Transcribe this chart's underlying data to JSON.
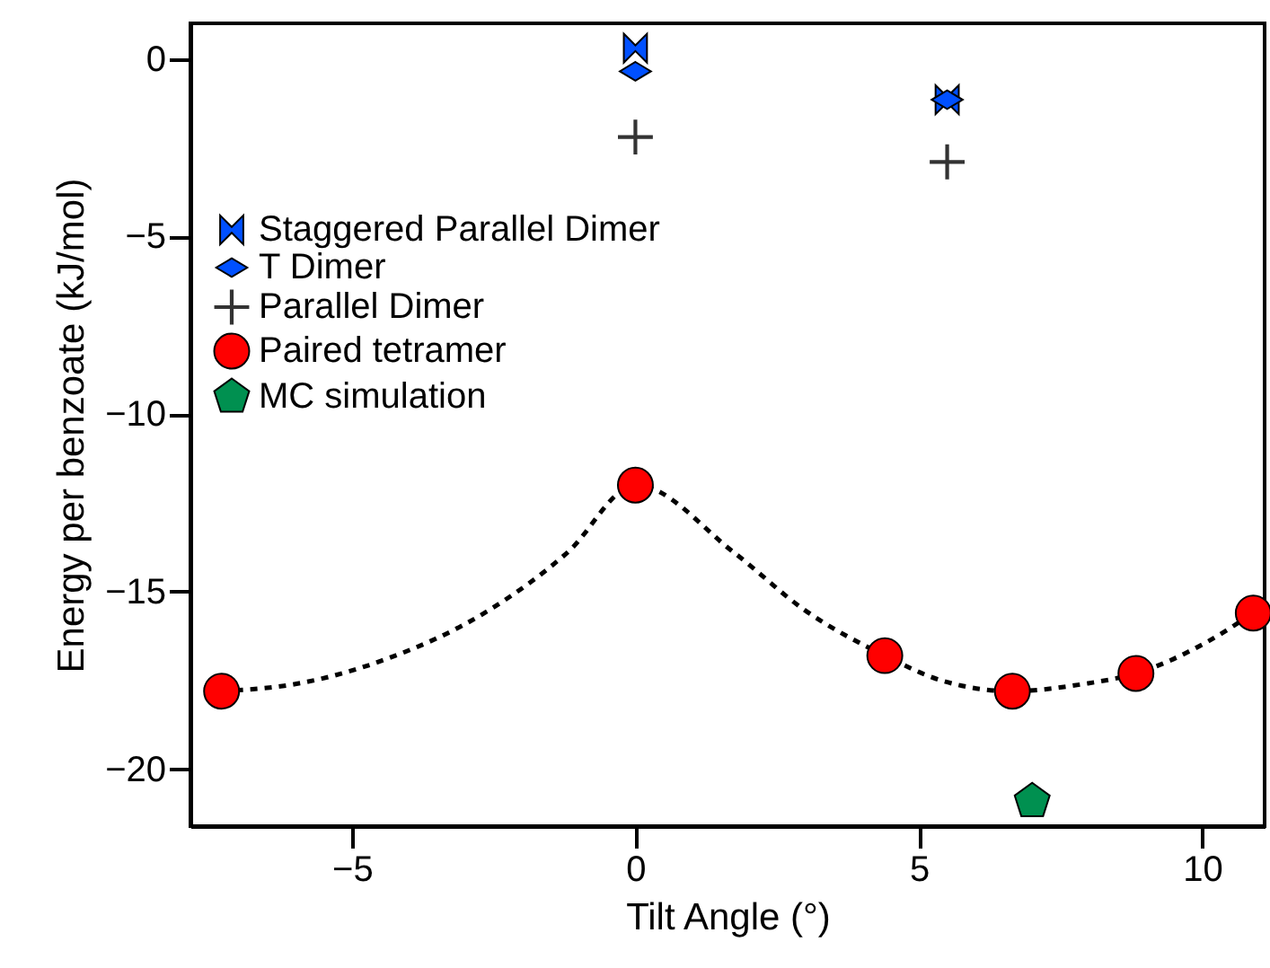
{
  "chart_data": {
    "type": "scatter",
    "xlabel": "Tilt Angle (°)",
    "ylabel": "Energy per benzoate (kJ/mol)",
    "xlim": [
      -7.85,
      11.1
    ],
    "ylim": [
      -21.6,
      1
    ],
    "xticks": [
      -5,
      0,
      5,
      10
    ],
    "yticks": [
      -20,
      -15,
      -10,
      -5,
      0
    ],
    "grid": false,
    "legend": "top left",
    "series": [
      {
        "type": "line",
        "color": "#000000",
        "line_style": "dashed",
        "x": [
          -7.3,
          -6.0,
          -4.4,
          -2.56,
          -1.2,
          0,
          1.74,
          2.97,
          4.4,
          5.4,
          6.65,
          7.9,
          8.83,
          10.1,
          10.9
        ],
        "values": [
          -17.8,
          -17.6,
          -16.9,
          -15.5,
          -13.9,
          -12.0,
          -13.9,
          -15.5,
          -16.8,
          -17.5,
          -17.8,
          -17.6,
          -17.3,
          -16.4,
          -15.6
        ]
      },
      {
        "name": "Staggered Parallel Dimer",
        "color": "#0050ff",
        "x": [
          0,
          5.5
        ],
        "values": [
          0.3,
          -1.15
        ]
      },
      {
        "name": "T Dimer",
        "color": "#0050ff",
        "marker": "diamond",
        "x": [
          0,
          5.5
        ],
        "values": [
          -0.35,
          -1.15
        ]
      },
      {
        "name": "Parallel Dimer",
        "color": "#333333",
        "marker": "cross",
        "x": [
          0,
          5.5
        ],
        "values": [
          -2.2,
          -2.9
        ]
      },
      {
        "name": "Paired tetramer",
        "color": "#ff0000",
        "marker": "circle",
        "x": [
          -7.3,
          0,
          4.4,
          6.65,
          8.83,
          10.9
        ],
        "values": [
          -17.8,
          -12.0,
          -16.8,
          -17.8,
          -17.3,
          -15.6
        ]
      },
      {
        "name": "MC simulation",
        "color": "#009050",
        "x": [
          7.0
        ],
        "values": [
          -20.9
        ]
      }
    ]
  }
}
